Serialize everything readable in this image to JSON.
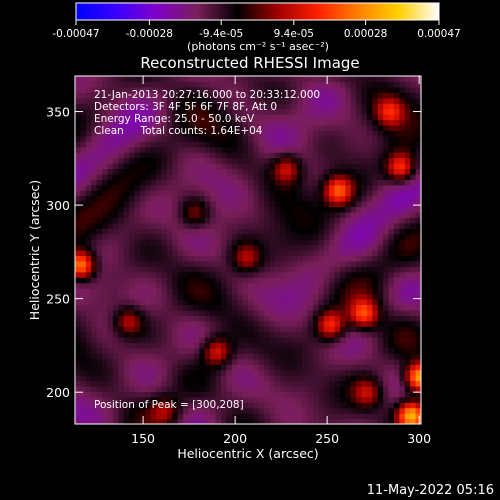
{
  "colorbar": {
    "tick_labels": [
      "-0.00047",
      "-0.00028",
      "-9.4e-05",
      "9.4e-05",
      "0.00028",
      "0.00047"
    ],
    "tick_values": [
      -0.00047,
      -0.00028,
      -9.4e-05,
      9.4e-05,
      0.00028,
      0.00047
    ],
    "range": [
      -0.00047,
      0.00047
    ],
    "units_label": "(photons cm⁻² s⁻¹ asec⁻²)",
    "colors": [
      "#0000ff",
      "#3a00ff",
      "#8000c8",
      "#7a1f5a",
      "#000000",
      "#a00000",
      "#ff2000",
      "#ff8000",
      "#ffd000",
      "#ffffff"
    ]
  },
  "chart_data": {
    "type": "heatmap",
    "title": "Reconstructed RHESSI Image",
    "xlabel": "Heliocentric X (arcsec)",
    "ylabel": "Heliocentric Y (arcsec)",
    "xlim": [
      113,
      301
    ],
    "ylim": [
      183,
      369
    ],
    "x_ticks": [
      150,
      200,
      250,
      300
    ],
    "y_ticks": [
      200,
      250,
      300,
      350
    ],
    "x_tick_labels": [
      "150",
      "200",
      "250",
      "300"
    ],
    "y_tick_labels": [
      "200",
      "250",
      "300",
      "350"
    ],
    "colormap": "RHESSI diverging (blue-purple-black-red-yellow-white)",
    "annotations": [
      "21-Jan-2013 20:27:16.000 to 20:33:12.000",
      "Detectors: 3F 4F 5F 6F 7F 8F, Att 0",
      "Energy Range: 25.0 - 50.0 keV",
      "Clean     Total counts: 1.64E+04"
    ],
    "peak_label": "Position of Peak = [300,208]",
    "peak": [
      300,
      208
    ],
    "hot_spots": [
      {
        "x": 116,
        "y": 268,
        "v": 0.00043
      },
      {
        "x": 300,
        "y": 208,
        "v": 0.00047
      },
      {
        "x": 296,
        "y": 188,
        "v": 0.00044
      },
      {
        "x": 290,
        "y": 320,
        "v": 0.0003
      },
      {
        "x": 256,
        "y": 308,
        "v": 0.00032
      },
      {
        "x": 228,
        "y": 320,
        "v": 0.00022
      },
      {
        "x": 190,
        "y": 222,
        "v": 0.00025
      },
      {
        "x": 252,
        "y": 236,
        "v": 0.00028
      },
      {
        "x": 270,
        "y": 242,
        "v": 0.0003
      },
      {
        "x": 142,
        "y": 238,
        "v": 0.0002
      },
      {
        "x": 284,
        "y": 350,
        "v": 0.00022
      },
      {
        "x": 178,
        "y": 296,
        "v": 0.00016
      },
      {
        "x": 206,
        "y": 272,
        "v": 0.00018
      },
      {
        "x": 162,
        "y": 190,
        "v": 0.00015
      },
      {
        "x": 272,
        "y": 200,
        "v": 0.00018
      }
    ]
  },
  "footer": {
    "timestamp": "11-May-2022 05:16"
  }
}
